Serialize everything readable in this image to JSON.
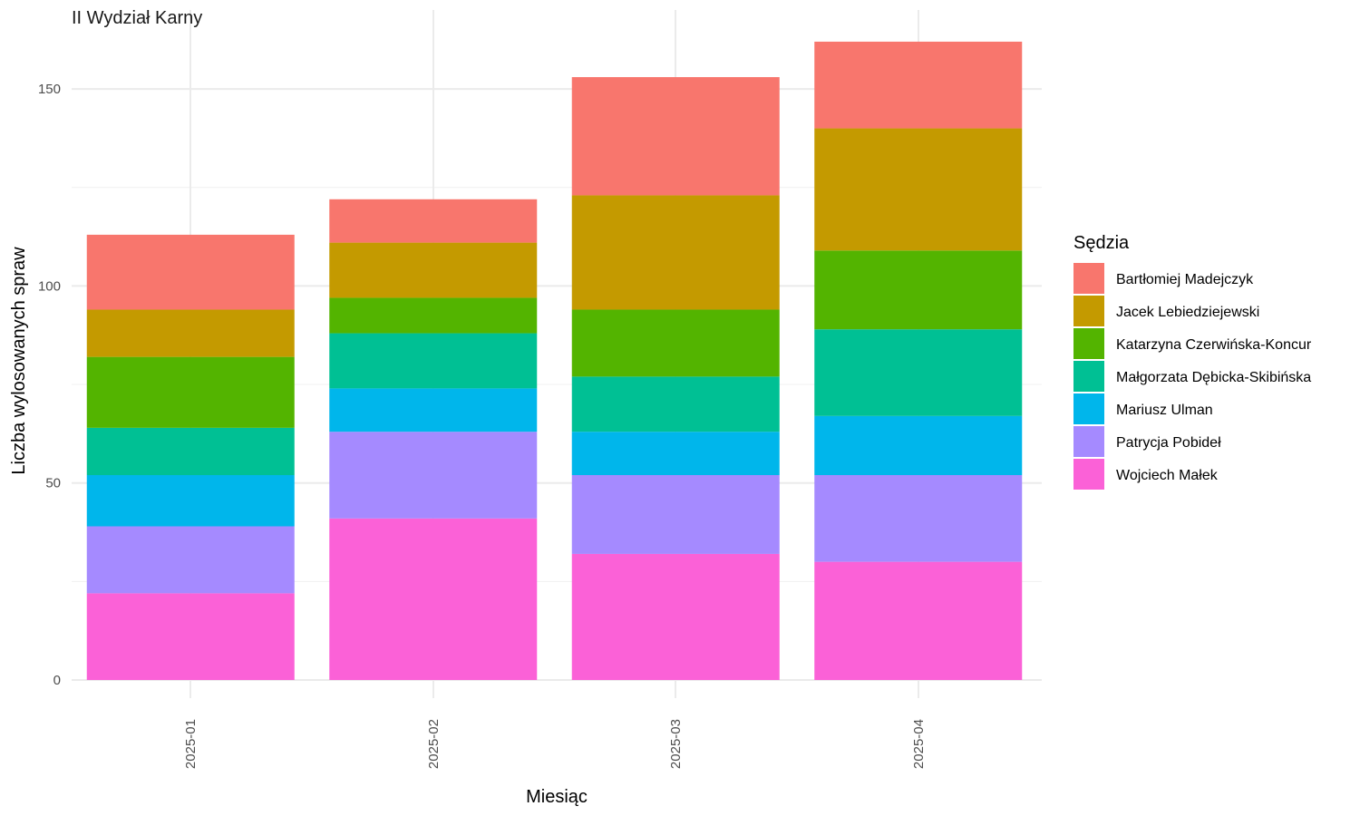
{
  "chart_data": {
    "type": "bar",
    "stacked": true,
    "title": "II Wydział Karny",
    "xlabel": "Miesiąc",
    "ylabel": "Liczba wylosowanych spraw",
    "ylim": [
      0,
      163
    ],
    "yticks": [
      0,
      50,
      100,
      150
    ],
    "grid": true,
    "legend_position": "right",
    "legend_title": "Sędzia",
    "categories": [
      "2025-01",
      "2025-02",
      "2025-03",
      "2025-04"
    ],
    "series": [
      {
        "name": "Bartłomiej Madejczyk",
        "color": "#F8766D",
        "values": [
          19,
          11,
          30,
          22
        ]
      },
      {
        "name": "Jacek Lebiedziejewski",
        "color": "#C49A00",
        "values": [
          12,
          14,
          29,
          31
        ]
      },
      {
        "name": "Katarzyna Czerwińska-Koncur",
        "color": "#53B400",
        "values": [
          18,
          9,
          17,
          20
        ]
      },
      {
        "name": "Małgorzata Dębicka-Skibińska",
        "color": "#00C094",
        "values": [
          12,
          14,
          14,
          22
        ]
      },
      {
        "name": "Mariusz Ulman",
        "color": "#00B6EB",
        "values": [
          13,
          11,
          11,
          15
        ]
      },
      {
        "name": "Patrycja Pobideł",
        "color": "#A58AFF",
        "values": [
          17,
          22,
          20,
          22
        ]
      },
      {
        "name": "Wojciech Małek",
        "color": "#FB61D7",
        "values": [
          22,
          41,
          32,
          30
        ]
      }
    ]
  }
}
